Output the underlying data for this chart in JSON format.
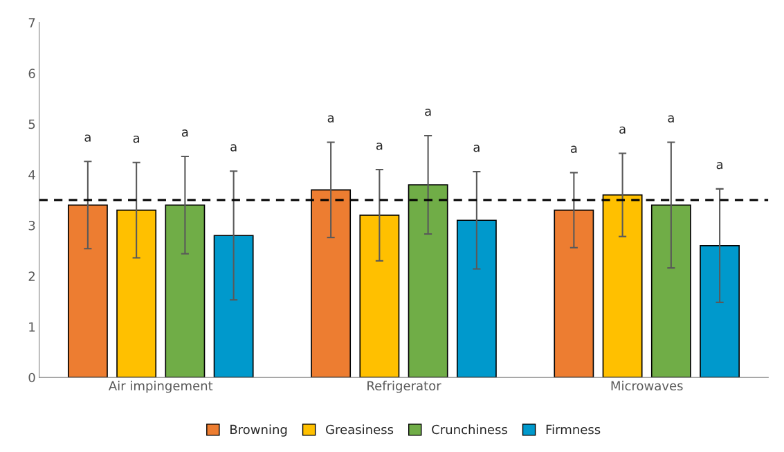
{
  "chart_data": {
    "type": "bar",
    "categories": [
      "Air impingement",
      "Refrigerator",
      "Microwaves"
    ],
    "series": [
      {
        "name": "Browning",
        "color": "#ed7d31",
        "values": [
          3.4,
          3.7,
          3.3
        ],
        "errors": [
          0.86,
          0.94,
          0.74
        ]
      },
      {
        "name": "Greasiness",
        "color": "#ffc000",
        "values": [
          3.3,
          3.2,
          3.6
        ],
        "errors": [
          0.94,
          0.9,
          0.82
        ]
      },
      {
        "name": "Crunchiness",
        "color": "#70ad47",
        "values": [
          3.4,
          3.8,
          3.4
        ],
        "errors": [
          0.96,
          0.97,
          1.24
        ]
      },
      {
        "name": "Firmness",
        "color": "#0099cc",
        "values": [
          2.8,
          3.1,
          2.6
        ],
        "errors": [
          1.27,
          0.96,
          1.12
        ]
      }
    ],
    "ylim": [
      0,
      7
    ],
    "yticks": [
      0,
      1,
      2,
      3,
      4,
      5,
      6,
      7
    ],
    "ref_lines": [
      {
        "axis": "y",
        "value": 3.5,
        "label": null,
        "color": "#000000",
        "line_style": "dashed"
      }
    ],
    "annotations": [
      "a",
      "a",
      "a",
      "a",
      "a",
      "a",
      "a",
      "a",
      "a",
      "a",
      "a",
      "a"
    ],
    "grid": false,
    "legend": "bottom"
  }
}
